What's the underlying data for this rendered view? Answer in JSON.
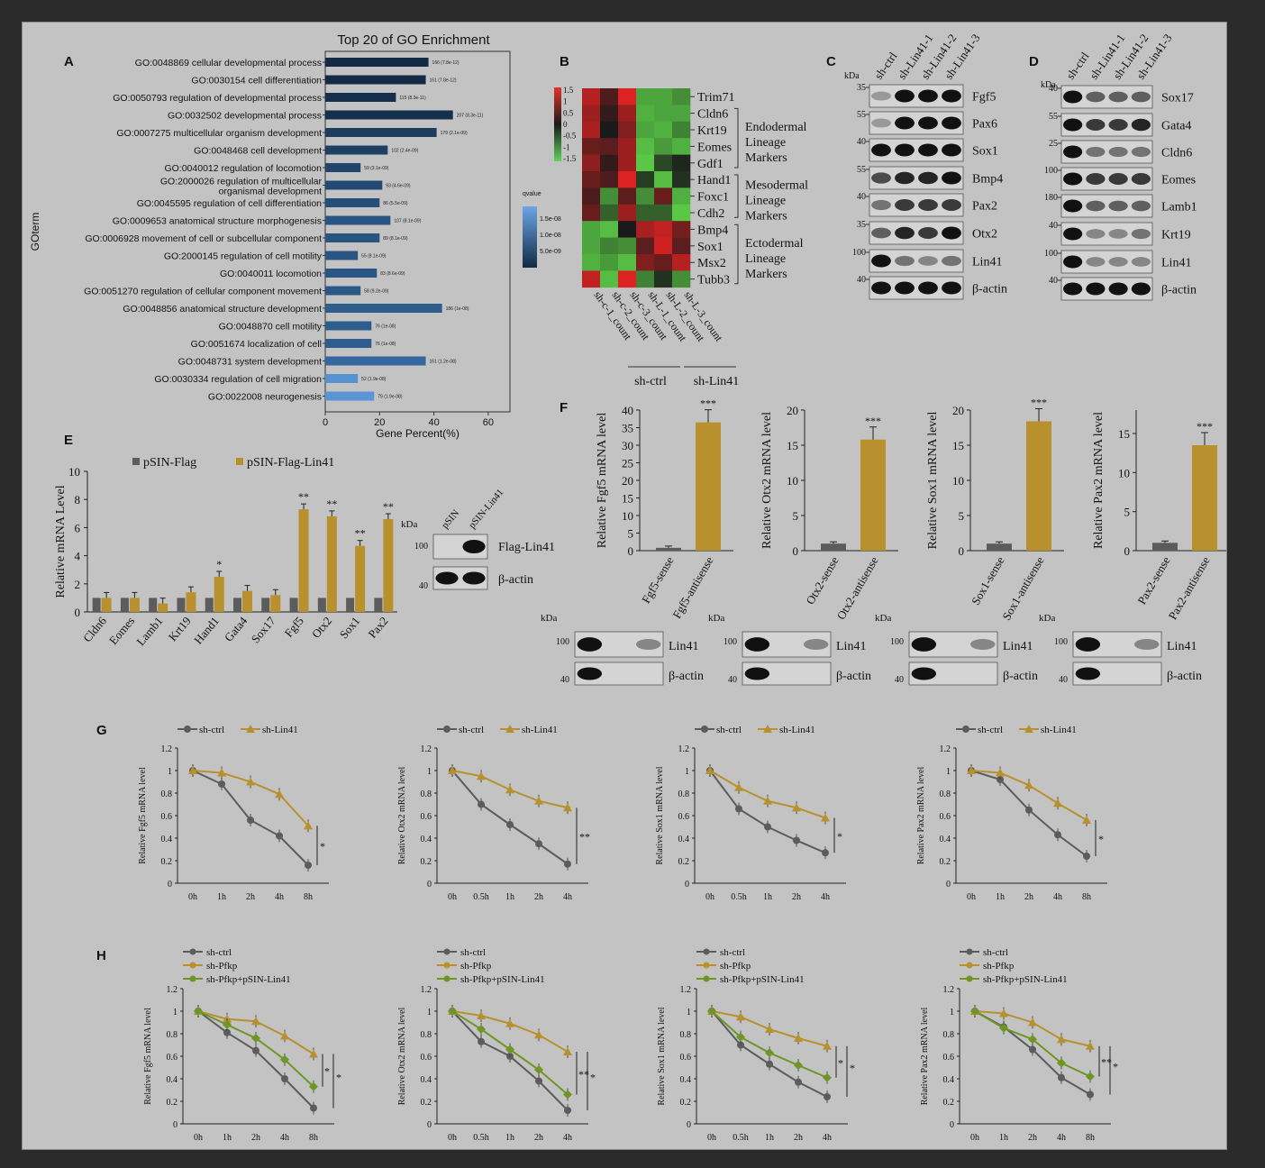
{
  "panelA": {
    "letter": "A",
    "title": "Top 20 of GO Enrichment",
    "ylabel": "GOterm",
    "xlabel": "Gene Percent(%)",
    "xticks": [
      "0",
      "20",
      "40",
      "60"
    ],
    "legend_title": "qvalue",
    "legend_ticks": [
      "1.5e-08",
      "1.0e-08",
      "5.0e-09"
    ],
    "terms": [
      {
        "label": "GO:0048869 cellular developmental process",
        "value": 38,
        "ann": "166 (7.8e-12)",
        "color": "#132a44"
      },
      {
        "label": "GO:0030154 cell differentiation",
        "value": 37,
        "ann": "161 (7.8e-12)",
        "color": "#132a44"
      },
      {
        "label": "GO:0050793 regulation of developmental process",
        "value": 26,
        "ann": "115 (8.3e-11)",
        "color": "#15304c"
      },
      {
        "label": "GO:0032502 developmental process",
        "value": 47,
        "ann": "207 (8.3e-11)",
        "color": "#15304c"
      },
      {
        "label": "GO:0007275 multicellular organism development",
        "value": 41,
        "ann": "179 (2.1e-09)",
        "color": "#1d3c5e"
      },
      {
        "label": "GO:0048468 cell development",
        "value": 23,
        "ann": "102 (2.4e-09)",
        "color": "#1e3f62"
      },
      {
        "label": "GO:0040012 regulation of locomotion",
        "value": 13,
        "ann": "59 (3.1e-09)",
        "color": "#20446a"
      },
      {
        "label": "GO:2000026 regulation of multicellular|organismal development",
        "value": 21,
        "ann": "93 (4.6e-09)",
        "color": "#234a72"
      },
      {
        "label": "GO:0045595 regulation of cell differentiation",
        "value": 20,
        "ann": "86 (5.5e-09)",
        "color": "#264e78"
      },
      {
        "label": "GO:0009653 anatomical structure morphogenesis",
        "value": 24,
        "ann": "107 (8.1e-09)",
        "color": "#2a5582"
      },
      {
        "label": "GO:0006928 movement of cell or subcellular component",
        "value": 20,
        "ann": "89 (8.1e-09)",
        "color": "#2a5582"
      },
      {
        "label": "GO:2000145 regulation of cell motility",
        "value": 12,
        "ann": "55 (8.1e-09)",
        "color": "#2a5582"
      },
      {
        "label": "GO:0040011 locomotion",
        "value": 19,
        "ann": "83 (8.6e-09)",
        "color": "#2b5684"
      },
      {
        "label": "GO:0051270 regulation of cellular component movement",
        "value": 13,
        "ann": "58 (9.2e-09)",
        "color": "#2c5886"
      },
      {
        "label": "GO:0048856 anatomical structure development",
        "value": 43,
        "ann": "186 (1e-08)",
        "color": "#2e5c8c"
      },
      {
        "label": "GO:0048870 cell motility",
        "value": 17,
        "ann": "76 (1e-08)",
        "color": "#2e5c8c"
      },
      {
        "label": "GO:0051674 localization of cell",
        "value": 17,
        "ann": "76 (1e-08)",
        "color": "#2e5c8c"
      },
      {
        "label": "GO:0048731 system development",
        "value": 37,
        "ann": "161 (1.2e-08)",
        "color": "#3668a0"
      },
      {
        "label": "GO:0030334 regulation of cell migration",
        "value": 12,
        "ann": "52 (1.9e-08)",
        "color": "#5891d0"
      },
      {
        "label": "GO:0022008 neurogenesis",
        "value": 18,
        "ann": "79 (1.9e-08)",
        "color": "#5b95d6"
      }
    ]
  },
  "panelB": {
    "letter": "B",
    "scale_ticks": [
      "1.5",
      "1",
      "0.5",
      "0",
      "-0.5",
      "-1",
      "-1.5"
    ],
    "genes": [
      "Trim71",
      "Cldn6",
      "Krt19",
      "Eomes",
      "Gdf1",
      "Hand1",
      "Foxc1",
      "Cdh2",
      "Bmp4",
      "Sox1",
      "Msx2",
      "Tubb3"
    ],
    "groups": [
      {
        "label": "Endodermal|Lineage|Markers",
        "from": 1,
        "to": 4
      },
      {
        "label": "Mesodermal|Lineage|Markers",
        "from": 5,
        "to": 7
      },
      {
        "label": "Ectodermal|Lineage|Markers",
        "from": 8,
        "to": 11
      }
    ],
    "samples": [
      "sh-c-1_count",
      "sh-c-2_count",
      "sh-c-3_count",
      "sh-L-1_count",
      "sh-L-2_count",
      "sh-L-3_count"
    ],
    "sample_groups": [
      "sh-ctrl",
      "sh-Lin41"
    ],
    "matrix": [
      [
        1.2,
        0.4,
        1.5,
        -1.2,
        -1.2,
        -1.0
      ],
      [
        1.0,
        0.2,
        1.0,
        -1.3,
        -1.2,
        -1.2
      ],
      [
        1.1,
        0.0,
        0.8,
        -1.2,
        -1.3,
        -0.9
      ],
      [
        0.6,
        0.5,
        1.0,
        -1.4,
        -1.1,
        -1.3
      ],
      [
        0.9,
        0.2,
        1.0,
        -1.5,
        -0.4,
        -0.1
      ],
      [
        0.6,
        0.4,
        1.5,
        -0.3,
        -1.4,
        -0.2
      ],
      [
        0.4,
        -1.0,
        0.5,
        -1.0,
        0.6,
        -1.3
      ],
      [
        0.6,
        -0.6,
        1.0,
        -0.6,
        -0.6,
        -1.5
      ],
      [
        -1.2,
        -1.4,
        0.0,
        1.1,
        1.3,
        0.7
      ],
      [
        -1.2,
        -0.9,
        -1.0,
        0.5,
        1.4,
        0.5
      ],
      [
        -1.3,
        -1.1,
        -1.4,
        0.8,
        0.6,
        1.2
      ],
      [
        1.3,
        -1.4,
        1.5,
        -0.9,
        -0.2,
        -1.0
      ]
    ]
  },
  "panelC": {
    "letter": "C",
    "kda": "kDa",
    "lanes": [
      "sh-ctrl",
      "sh-Lin41-1",
      "sh-Lin41-2",
      "sh-Lin41-3"
    ],
    "bands": [
      {
        "name": "Fgf5",
        "kda": "35"
      },
      {
        "name": "Pax6",
        "kda": "55"
      },
      {
        "name": "Sox1",
        "kda": "40"
      },
      {
        "name": "Bmp4",
        "kda": "55"
      },
      {
        "name": "Pax2",
        "kda": "40"
      },
      {
        "name": "Otx2",
        "kda": "35"
      },
      {
        "name": "Lin41",
        "kda": "100"
      },
      {
        "name": "β-actin",
        "kda": "40"
      }
    ]
  },
  "panelD": {
    "letter": "D",
    "kda": "kDa",
    "lanes": [
      "sh-ctrl",
      "sh-Lin41-1",
      "sh-Lin41-2",
      "sh-Lin41-3"
    ],
    "bands": [
      {
        "name": "Sox17",
        "kda": "40"
      },
      {
        "name": "Gata4",
        "kda": "55"
      },
      {
        "name": "Cldn6",
        "kda": "25"
      },
      {
        "name": "Eomes",
        "kda": "100"
      },
      {
        "name": "Lamb1",
        "kda": "180"
      },
      {
        "name": "Krt19",
        "kda": "40"
      },
      {
        "name": "Lin41",
        "kda": "100"
      },
      {
        "name": "β-actin",
        "kda": "40"
      }
    ]
  },
  "panelE": {
    "letter": "E",
    "ylabel": "Relative mRNA Level",
    "yticks": [
      "0",
      "2",
      "4",
      "6",
      "8",
      "10"
    ],
    "legend": [
      "pSIN-Flag",
      "pSIN-Flag-Lin41"
    ],
    "categories": [
      "Cldn6",
      "Eomes",
      "Lamb1",
      "Krt19",
      "Hand1",
      "Gata4",
      "Sox17",
      "Fgf5",
      "Otx2",
      "Sox1",
      "Pax2"
    ],
    "flag": [
      1,
      1,
      1,
      1,
      1,
      1,
      1,
      1,
      1,
      1,
      1
    ],
    "lin41": [
      1.0,
      1.0,
      0.6,
      1.4,
      2.5,
      1.5,
      1.2,
      7.3,
      6.8,
      4.7,
      6.6
    ],
    "sig": [
      "",
      "",
      "",
      "",
      "*",
      "",
      "",
      "**",
      "**",
      "**",
      "**"
    ],
    "blot": {
      "kda": "kDa",
      "lanes": [
        "pSIN",
        "pSIN-Lin41"
      ],
      "bands": [
        {
          "name": "Flag-Lin41",
          "kda": "100"
        },
        {
          "name": "β-actin",
          "kda": "40"
        }
      ]
    }
  },
  "panelF": {
    "letter": "F",
    "charts": [
      {
        "ylabel": "Relative Fgf5 mRNA level",
        "yticks": [
          "0",
          "5",
          "10",
          "15",
          "20",
          "25",
          "30",
          "35",
          "40"
        ],
        "ymax": 40,
        "cats": [
          "Fgf5-sense",
          "Fgf5-antisense"
        ],
        "values": [
          0.8,
          36.5
        ],
        "sig": "***"
      },
      {
        "ylabel": "Relative Otx2 mRNA level",
        "yticks": [
          "0",
          "5",
          "10",
          "15",
          "20"
        ],
        "ymax": 20,
        "cats": [
          "Otx2-sense",
          "Otx2-antisense"
        ],
        "values": [
          1.0,
          15.8
        ],
        "sig": "***"
      },
      {
        "ylabel": "Relative Sox1 mRNA level",
        "yticks": [
          "0",
          "5",
          "10",
          "15",
          "20"
        ],
        "ymax": 20,
        "cats": [
          "Sox1-sense",
          "Sox1-antisense"
        ],
        "values": [
          1.0,
          18.4
        ],
        "sig": "***"
      },
      {
        "ylabel": "Relative Pax2 mRNA level",
        "yticks": [
          "0",
          "5",
          "10",
          "15"
        ],
        "ymax": 18,
        "cats": [
          "Pax2-sense",
          "Pax2-antisense"
        ],
        "values": [
          1.0,
          13.5
        ],
        "sig": "***"
      }
    ],
    "blot": {
      "kda": "kDa",
      "bands": [
        {
          "name": "Lin41",
          "kda": "100"
        },
        {
          "name": "β-actin",
          "kda": "40"
        }
      ]
    }
  },
  "panelG": {
    "letter": "G",
    "legend": [
      "sh-ctrl",
      "sh-Lin41"
    ],
    "yticks": [
      "0",
      "0.2",
      "0.4",
      "0.6",
      "0.8",
      "1",
      "1.2"
    ],
    "charts": [
      {
        "ylabel": "Relative Fgf5 mRNA level",
        "x": [
          "0h",
          "1h",
          "2h",
          "4h",
          "8h"
        ],
        "ctrl": [
          1,
          0.88,
          0.56,
          0.42,
          0.16
        ],
        "kd": [
          1,
          0.98,
          0.9,
          0.79,
          0.51
        ],
        "sig": "*"
      },
      {
        "ylabel": "Relative Otx2 mRNA level",
        "x": [
          "0h",
          "0.5h",
          "1h",
          "2h",
          "4h"
        ],
        "ctrl": [
          1,
          0.7,
          0.52,
          0.35,
          0.17
        ],
        "kd": [
          1,
          0.95,
          0.83,
          0.73,
          0.67
        ],
        "sig": "**"
      },
      {
        "ylabel": "Relative Sox1 mRNA level",
        "x": [
          "0h",
          "0.5h",
          "1h",
          "2h",
          "4h"
        ],
        "ctrl": [
          1,
          0.66,
          0.5,
          0.38,
          0.27
        ],
        "kd": [
          1,
          0.85,
          0.73,
          0.67,
          0.58
        ],
        "sig": "*"
      },
      {
        "ylabel": "Relative Pax2 mRNA level",
        "x": [
          "0h",
          "1h",
          "2h",
          "4h",
          "8h"
        ],
        "ctrl": [
          1,
          0.92,
          0.65,
          0.43,
          0.24
        ],
        "kd": [
          1,
          0.98,
          0.87,
          0.71,
          0.56
        ],
        "sig": "*"
      }
    ]
  },
  "panelH": {
    "letter": "H",
    "legend": [
      "sh-ctrl",
      "sh-Pfkp",
      "sh-Pfkp+pSIN-Lin41"
    ],
    "yticks": [
      "0",
      "0.2",
      "0.4",
      "0.6",
      "0.8",
      "1",
      "1.2"
    ],
    "charts": [
      {
        "ylabel": "Relative Fgf5 mRNA level",
        "x": [
          "0h",
          "1h",
          "2h",
          "4h",
          "8h"
        ],
        "ctrl": [
          1,
          0.81,
          0.65,
          0.4,
          0.14
        ],
        "pfkp": [
          1,
          0.93,
          0.91,
          0.78,
          0.62
        ],
        "rescue": [
          1,
          0.88,
          0.76,
          0.57,
          0.33
        ],
        "sig": [
          "*",
          "*"
        ]
      },
      {
        "ylabel": "Relative Otx2 mRNA level",
        "x": [
          "0h",
          "0.5h",
          "1h",
          "2h",
          "4h"
        ],
        "ctrl": [
          1,
          0.73,
          0.6,
          0.38,
          0.12
        ],
        "pfkp": [
          1,
          0.96,
          0.89,
          0.79,
          0.64
        ],
        "rescue": [
          1,
          0.84,
          0.66,
          0.48,
          0.26
        ],
        "sig": [
          "**",
          "*"
        ]
      },
      {
        "ylabel": "Relative Sox1 mRNA level",
        "x": [
          "0h",
          "0.5h",
          "1h",
          "2h",
          "4h"
        ],
        "ctrl": [
          1,
          0.7,
          0.53,
          0.37,
          0.24
        ],
        "pfkp": [
          1,
          0.95,
          0.84,
          0.76,
          0.69
        ],
        "rescue": [
          1,
          0.77,
          0.63,
          0.52,
          0.41
        ],
        "sig": [
          "*",
          "*"
        ]
      },
      {
        "ylabel": "Relative Pax2 mRNA level",
        "x": [
          "0h",
          "1h",
          "2h",
          "4h",
          "8h"
        ],
        "ctrl": [
          1,
          0.86,
          0.66,
          0.41,
          0.26
        ],
        "pfkp": [
          1,
          0.98,
          0.9,
          0.75,
          0.69
        ],
        "rescue": [
          1,
          0.85,
          0.75,
          0.54,
          0.42
        ],
        "sig": [
          "**",
          "*"
        ]
      }
    ]
  },
  "colors": {
    "bg": "#c3c3c3",
    "gray": "#5c5c5c",
    "gold": "#b8912e",
    "green": "#6e9526"
  }
}
